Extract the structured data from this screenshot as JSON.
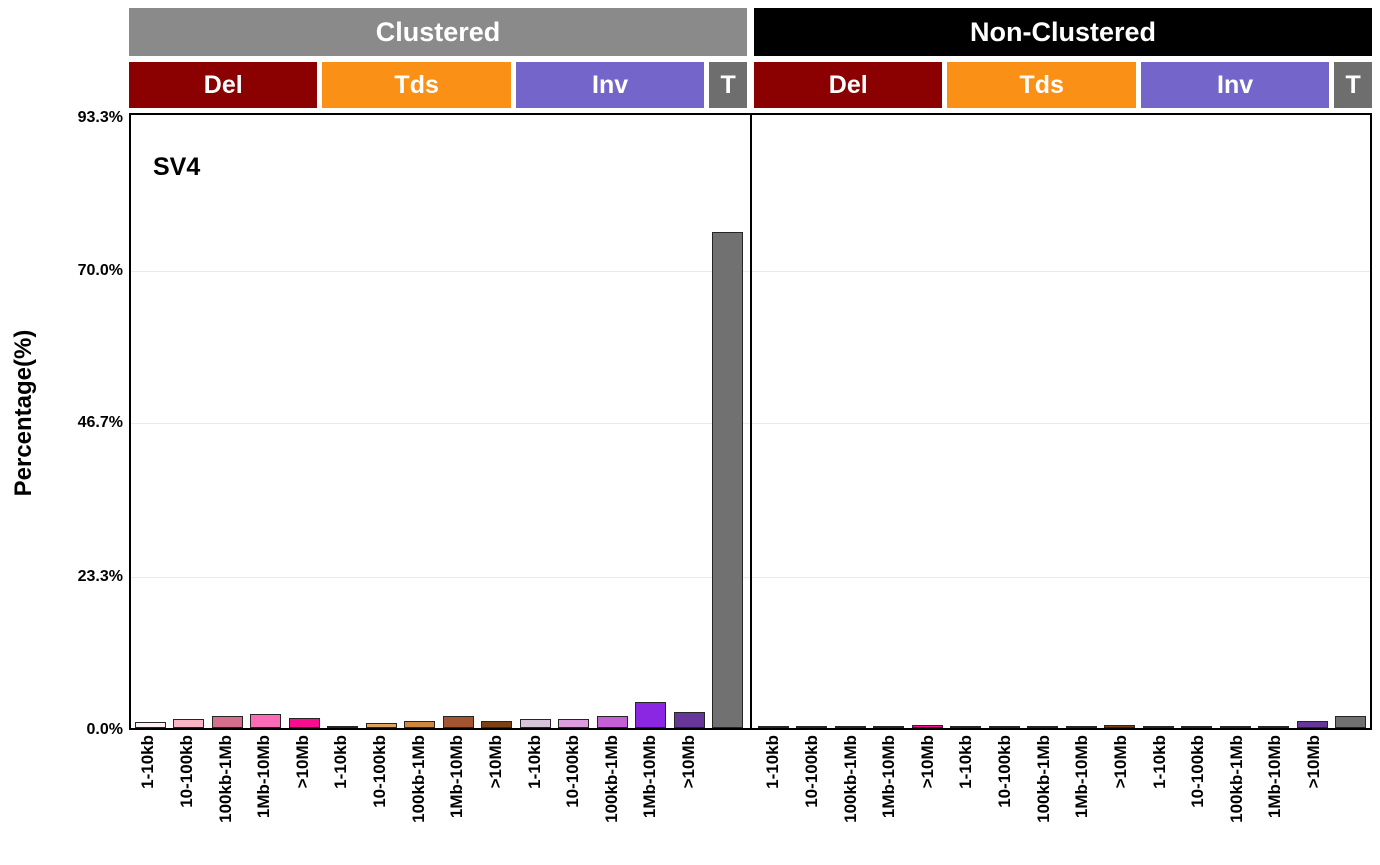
{
  "chart_data": {
    "type": "bar",
    "title": "",
    "sv_label": "SV4",
    "ylabel": "Percentage(%)",
    "y_max": 94,
    "y_ticks": [
      {
        "label": "0.0%",
        "value": 0
      },
      {
        "label": "23.3%",
        "value": 23.3
      },
      {
        "label": "46.7%",
        "value": 46.7
      },
      {
        "label": "70.0%",
        "value": 70.0
      },
      {
        "label": "93.3%",
        "value": 93.3
      }
    ],
    "grid_values": [
      23.3,
      46.7,
      70.0
    ],
    "size_categories": [
      "1-10kb",
      "10-100kb",
      "100kb-1Mb",
      "1Mb-10Mb",
      ">10Mb"
    ],
    "colors": {
      "grid": "#EAEAEA",
      "axis": "#000000",
      "bar_border": "#262626",
      "header_text": "#FFFFFF"
    },
    "panels": [
      {
        "name": "Clustered",
        "header_bg": "#8A8A8A",
        "groups": [
          {
            "name": "Del",
            "header_bg": "#8B0000",
            "labels": [
              "1-10kb",
              "10-100kb",
              "100kb-1Mb",
              "1Mb-10Mb",
              ">10Mb"
            ],
            "colors": [
              "#FDF0F5",
              "#F9B4C4",
              "#D4708E",
              "#FC6BB5",
              "#F70D8E"
            ],
            "values": [
              0.9,
              1.3,
              1.8,
              2.2,
              1.5
            ]
          },
          {
            "name": "Tds",
            "header_bg": "#FB9016",
            "labels": [
              "1-10kb",
              "10-100kb",
              "100kb-1Mb",
              "1Mb-10Mb",
              ">10Mb"
            ],
            "colors": [
              "#EED9B8",
              "#DFA35F",
              "#CD873E",
              "#A55431",
              "#7C4014"
            ],
            "values": [
              0.1,
              0.7,
              1.0,
              1.8,
              1.0
            ]
          },
          {
            "name": "Inv",
            "header_bg": "#7365CA",
            "labels": [
              "1-10kb",
              "10-100kb",
              "100kb-1Mb",
              "1Mb-10Mb",
              ">10Mb"
            ],
            "colors": [
              "#D7C3DA",
              "#DC9DDE",
              "#C45FD6",
              "#8B27E3",
              "#663799"
            ],
            "values": [
              1.3,
              1.3,
              1.9,
              4.0,
              2.5
            ]
          },
          {
            "name": "T",
            "header_bg": "#6E6E6E",
            "labels": [
              ""
            ],
            "colors": [
              "#717171"
            ],
            "values": [
              75.5
            ]
          }
        ]
      },
      {
        "name": "Non-Clustered",
        "header_bg": "#000000",
        "groups": [
          {
            "name": "Del",
            "header_bg": "#8B0000",
            "labels": [
              "1-10kb",
              "10-100kb",
              "100kb-1Mb",
              "1Mb-10Mb",
              ">10Mb"
            ],
            "colors": [
              "#FDF0F5",
              "#F9B4C4",
              "#D4708E",
              "#FC6BB5",
              "#F70D8E"
            ],
            "values": [
              0.05,
              0.1,
              0.2,
              0.2,
              0.45
            ]
          },
          {
            "name": "Tds",
            "header_bg": "#FB9016",
            "labels": [
              "1-10kb",
              "10-100kb",
              "100kb-1Mb",
              "1Mb-10Mb",
              ">10Mb"
            ],
            "colors": [
              "#EED9B8",
              "#DFA35F",
              "#CD873E",
              "#A55431",
              "#7C4014"
            ],
            "values": [
              0.05,
              0.05,
              0.05,
              0.08,
              0.45
            ]
          },
          {
            "name": "Inv",
            "header_bg": "#7365CA",
            "labels": [
              "1-10kb",
              "10-100kb",
              "100kb-1Mb",
              "1Mb-10Mb",
              ">10Mb"
            ],
            "colors": [
              "#D7C3DA",
              "#DC9DDE",
              "#C45FD6",
              "#8B27E3",
              "#663799"
            ],
            "values": [
              0.08,
              0.1,
              0.12,
              0.15,
              1.0
            ]
          },
          {
            "name": "T",
            "header_bg": "#6E6E6E",
            "labels": [
              ""
            ],
            "colors": [
              "#717171"
            ],
            "values": [
              1.9
            ]
          }
        ]
      }
    ]
  }
}
